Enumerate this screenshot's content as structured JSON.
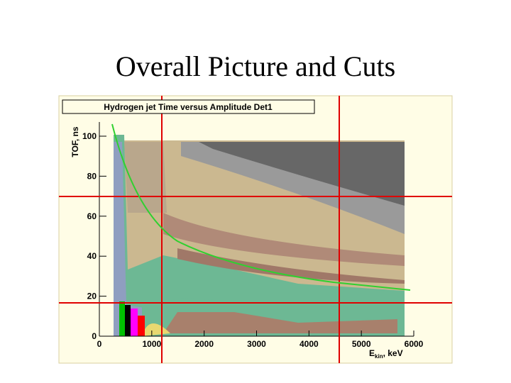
{
  "slide": {
    "title": "Overall Picture and Cuts"
  },
  "plot": {
    "title": "Hydrogen jet Time versus Amplitude Det1",
    "y_label": "TOF, ns",
    "x_label": {
      "main": "E",
      "sub": "kin",
      "unit": ", keV"
    },
    "x_ticks": [
      "0",
      "1000",
      "2000",
      "3000",
      "4000",
      "5000",
      "6000"
    ],
    "y_ticks": [
      "0",
      "20",
      "40",
      "60",
      "80",
      "100"
    ]
  }
}
